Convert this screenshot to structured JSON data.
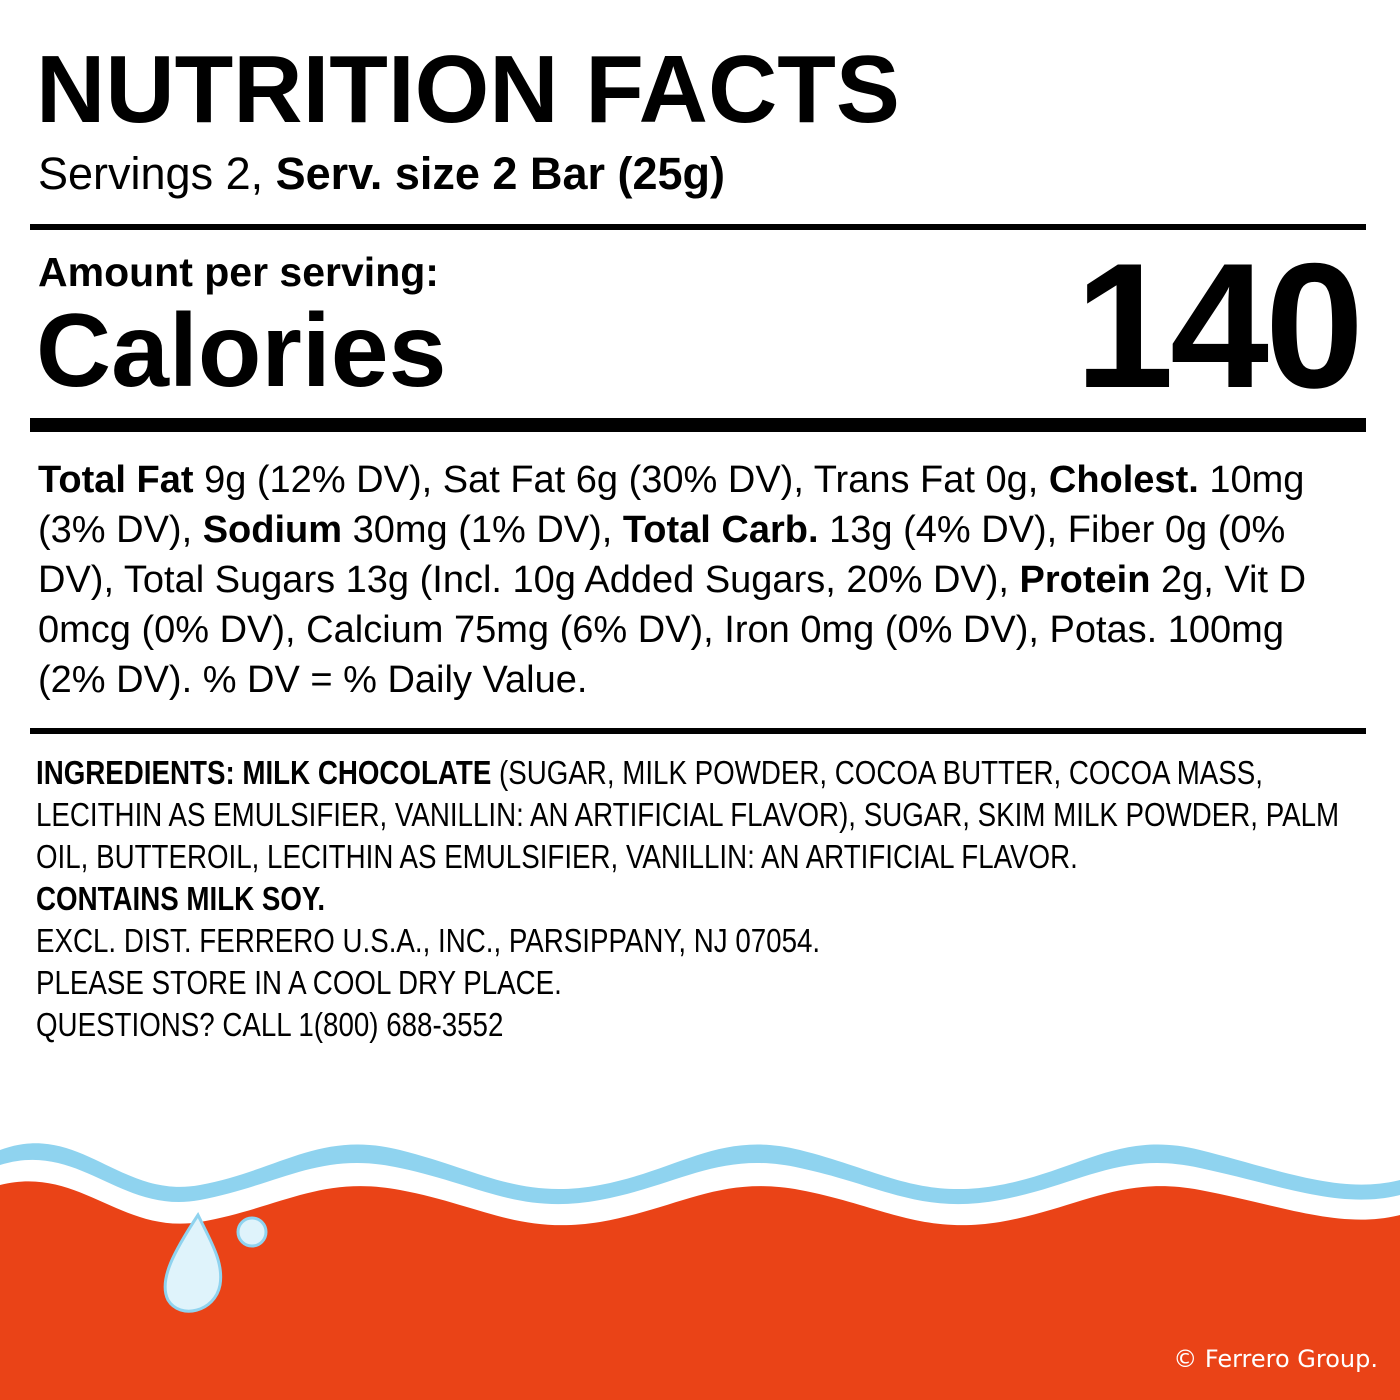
{
  "header": {
    "title": "NUTRITION FACTS",
    "servings": [
      {
        "text": "Servings 2, ",
        "bold": false
      },
      {
        "text": "Serv. size 2 Bar (25g)",
        "bold": true
      }
    ]
  },
  "calories": {
    "amount_label": "Amount per serving:",
    "label": "Calories",
    "value": 140
  },
  "nutrients": [
    {
      "text": "Total Fat",
      "bold": true
    },
    {
      "text": " 9g (12% DV), Sat Fat 6g (30% DV), Trans Fat 0g, ",
      "bold": false
    },
    {
      "text": "Cholest.",
      "bold": true
    },
    {
      "text": " 10mg (3% DV), ",
      "bold": false
    },
    {
      "text": "Sodium",
      "bold": true
    },
    {
      "text": " 30mg (1% DV), ",
      "bold": false
    },
    {
      "text": "Total Carb.",
      "bold": true
    },
    {
      "text": " 13g (4% DV), Fiber 0g (0% DV), Total Sugars 13g (Incl. 10g Added Sugars, 20% DV), ",
      "bold": false
    },
    {
      "text": "Protein",
      "bold": true
    },
    {
      "text": " 2g, Vit D 0mcg (0% DV), Calcium 75mg (6% DV), Iron 0mg (0% DV), Potas. 100mg (2% DV). % DV = % Daily Value.",
      "bold": false
    }
  ],
  "ingredients": [
    {
      "text": "INGREDIENTS: MILK CHOCOLATE",
      "bold": true
    },
    {
      "text": " (SUGAR, MILK POWDER, COCOA BUTTER, COCOA MASS, LECITHIN AS EMULSIFIER, VANILLIN: AN ARTIFICIAL FLAVOR), SUGAR, SKIM MILK POWDER, PALM OIL, BUTTEROIL, LECITHIN AS EMULSIFIER, VANILLIN: AN ARTIFICIAL FLAVOR.",
      "bold": false
    }
  ],
  "notes": [
    {
      "text": "CONTAINS MILK SOY.",
      "bold": true
    },
    {
      "text": "EXCL. DIST. FERRERO U.S.A., INC., PARSIPPANY, NJ 07054.",
      "bold": false
    },
    {
      "text": "PLEASE STORE IN A COOL DRY PLACE.",
      "bold": false
    },
    {
      "text": "QUESTIONS? CALL 1(800) 688-3552",
      "bold": false
    }
  ],
  "copyright": "© Ferrero Group."
}
